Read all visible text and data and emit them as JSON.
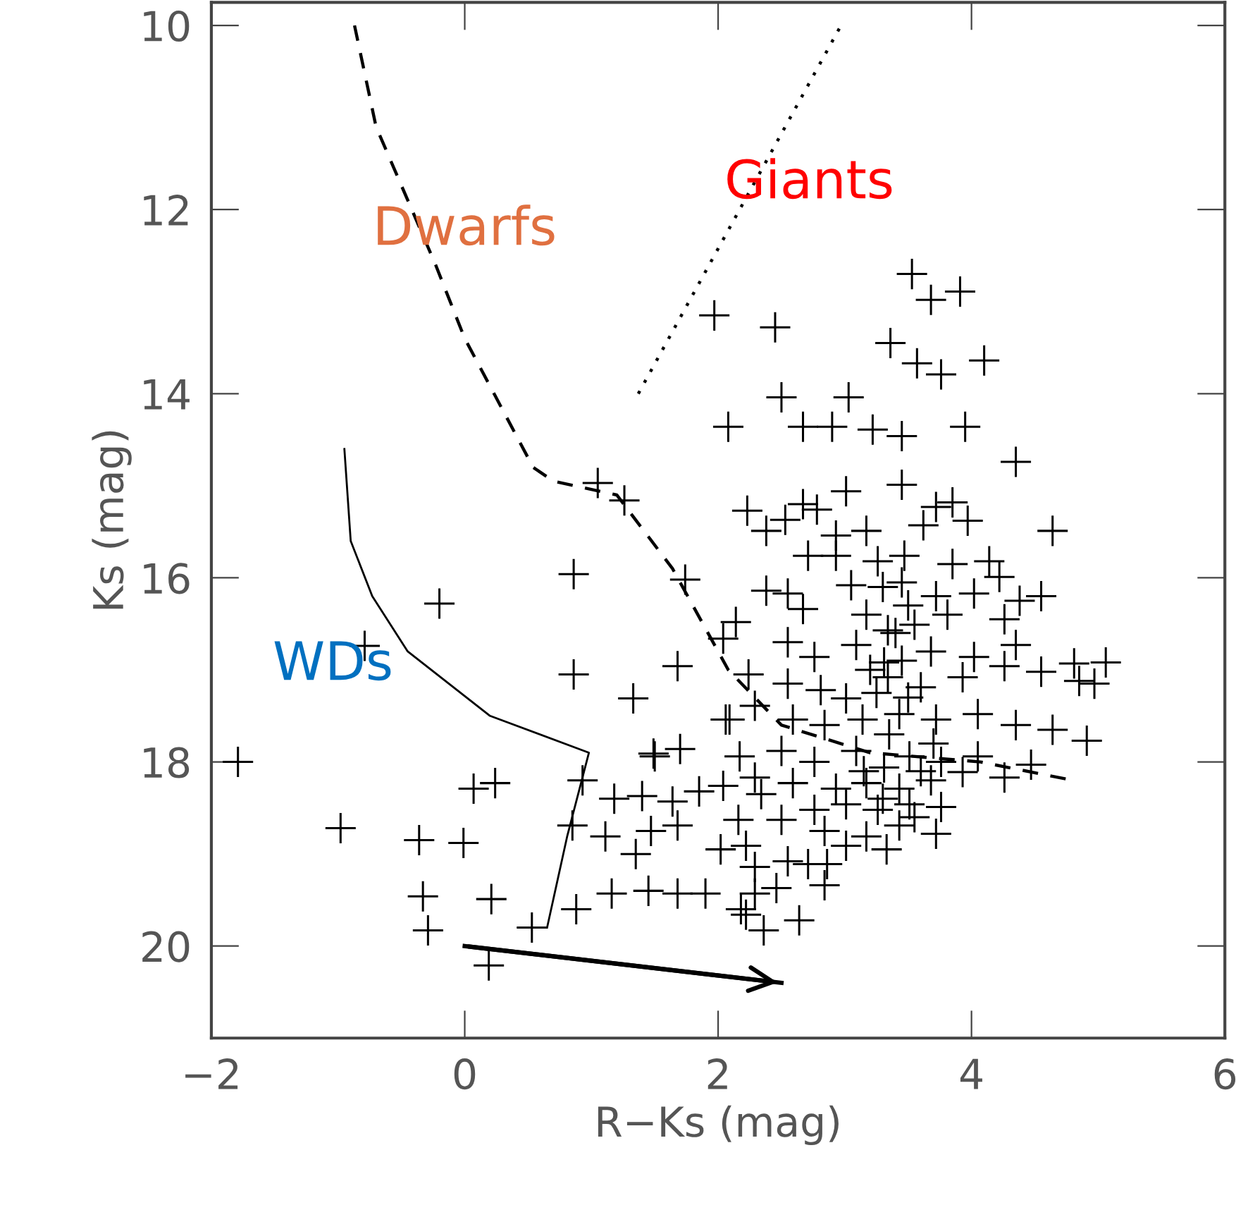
{
  "chart_data": {
    "type": "scatter",
    "xlabel": "R−Ks (mag)",
    "ylabel": "Ks (mag)",
    "xlim": [
      -2,
      6
    ],
    "ylim": [
      21,
      9.75
    ],
    "xticks": [
      {
        "value": -2,
        "label": "−2"
      },
      0,
      2,
      4,
      6
    ],
    "yticks": [
      10,
      12,
      14,
      16,
      18,
      20
    ],
    "grid": false,
    "legend": false,
    "annotations": [
      "Giants",
      "Dwarfs",
      "WDs"
    ],
    "series": [
      {
        "color": "#000000",
        "marker": "cross",
        "x": [
          1.97,
          2.08,
          1.05,
          1.26,
          2.23,
          0.86,
          -0.2,
          1.74,
          2.14,
          2.04,
          -0.79,
          0.86,
          1.68,
          1.33,
          2.06,
          1.49,
          1.7,
          -1.79,
          0.07,
          0.24,
          0.93,
          1.18,
          1.4,
          1.64,
          1.85,
          2.04,
          -0.98,
          -0.36,
          -0.01,
          0.85,
          1.11,
          1.47,
          1.68,
          2.16,
          1.35,
          2.02,
          -0.33,
          0.21,
          0.88,
          1.16,
          1.45,
          1.68,
          1.9,
          2.18,
          -0.29,
          0.53,
          0.19,
          3.53,
          3.68,
          3.91,
          2.45,
          3.36,
          3.57,
          3.76,
          4.1,
          2.5,
          3.03,
          2.67,
          2.9,
          3.22,
          3.45,
          3.95,
          4.35,
          3.45,
          3.01,
          2.67,
          2.78,
          3.85,
          3.97,
          2.53,
          2.38,
          3.62,
          3.72,
          4.64,
          2.93,
          3.17,
          2.71,
          2.93,
          3.26,
          3.47,
          3.85,
          4.14,
          4.22,
          2.38,
          2.55,
          3.05,
          3.45,
          3.72,
          4.02,
          4.38,
          4.55,
          2.67,
          3.17,
          3.34,
          3.55,
          3.81,
          4.26,
          2.55,
          2.76,
          3.09,
          3.31,
          3.68,
          4.02,
          4.35,
          2.24,
          2.55,
          2.81,
          3.01,
          3.34,
          3.6,
          3.93,
          4.26,
          4.55,
          4.81,
          5.06,
          4.85,
          4.97,
          2.09,
          2.29,
          2.59,
          2.84,
          3.14,
          3.43,
          3.72,
          4.05,
          4.35,
          4.64,
          4.91,
          1.5,
          2.17,
          2.5,
          2.76,
          3.09,
          3.31,
          3.51,
          3.76,
          4.05,
          4.26,
          4.47,
          2.29,
          2.59,
          2.93,
          3.17,
          3.43,
          3.68,
          3.93,
          2.34,
          2.5,
          2.76,
          3.01,
          3.26,
          3.51,
          3.76,
          2.84,
          3.17,
          3.43,
          3.72,
          3.01,
          3.33,
          2.22,
          2.29,
          2.55,
          2.71,
          2.86,
          2.46,
          2.84,
          2.29,
          2.22,
          2.36,
          2.64,
          3.35,
          3.5,
          3.25,
          3.45,
          3.6,
          3.3,
          3.55,
          3.2,
          3.4,
          3.7,
          3.15,
          3.5,
          3.3
        ],
        "values": [
          13.15,
          14.36,
          14.97,
          15.16,
          15.27,
          15.96,
          16.28,
          16.02,
          16.48,
          16.66,
          16.74,
          17.05,
          16.96,
          17.31,
          17.54,
          17.91,
          17.86,
          18.0,
          18.29,
          18.23,
          18.2,
          18.4,
          18.37,
          18.43,
          18.32,
          18.26,
          18.72,
          18.85,
          18.88,
          18.69,
          18.81,
          18.75,
          18.69,
          18.63,
          19.0,
          18.95,
          19.46,
          19.49,
          19.6,
          19.43,
          19.4,
          19.43,
          19.43,
          19.6,
          19.83,
          19.8,
          20.21,
          12.7,
          12.98,
          12.89,
          13.28,
          13.45,
          13.67,
          13.79,
          13.64,
          14.04,
          14.04,
          14.36,
          14.36,
          14.39,
          14.46,
          14.36,
          14.74,
          14.99,
          15.06,
          15.2,
          15.26,
          15.18,
          15.38,
          15.37,
          15.49,
          15.43,
          15.23,
          15.49,
          15.54,
          15.49,
          15.76,
          15.76,
          15.82,
          15.76,
          15.85,
          15.82,
          15.99,
          16.14,
          16.17,
          16.08,
          16.05,
          16.2,
          16.17,
          16.25,
          16.2,
          16.34,
          16.4,
          16.57,
          16.51,
          16.4,
          16.45,
          16.7,
          16.86,
          16.73,
          16.92,
          16.8,
          16.86,
          16.73,
          17.05,
          17.15,
          17.22,
          17.31,
          17.08,
          17.19,
          17.08,
          16.96,
          17.02,
          16.93,
          16.92,
          17.12,
          17.15,
          17.54,
          17.39,
          17.54,
          17.6,
          17.54,
          17.48,
          17.54,
          17.48,
          17.6,
          17.65,
          17.77,
          17.94,
          17.94,
          17.88,
          18.0,
          17.88,
          18.06,
          17.94,
          18.0,
          17.94,
          18.17,
          18.03,
          18.17,
          18.23,
          18.29,
          18.23,
          18.29,
          18.2,
          18.11,
          18.35,
          18.63,
          18.52,
          18.46,
          18.52,
          18.46,
          18.49,
          18.75,
          18.81,
          18.69,
          18.78,
          18.91,
          18.95,
          18.91,
          19.14,
          19.08,
          19.11,
          19.11,
          19.37,
          19.34,
          19.43,
          19.66,
          19.83,
          19.72,
          17.7,
          17.3,
          17.25,
          16.9,
          18.1,
          18.4,
          18.6,
          17.0,
          16.6,
          17.8,
          18.1,
          16.3,
          16.1
        ]
      },
      {
        "type": "line",
        "color": "#000000",
        "line_style": "dashed",
        "x": [
          -0.87,
          -0.7,
          -0.23,
          0.0,
          0.54,
          0.7,
          1.2,
          1.64,
          2.08,
          2.5,
          3.2,
          4.07,
          4.8
        ],
        "values": [
          10.0,
          11.1,
          12.6,
          13.4,
          14.8,
          14.95,
          15.1,
          15.9,
          17.0,
          17.6,
          17.9,
          18.0,
          18.2
        ]
      },
      {
        "type": "line",
        "color": "#000000",
        "line_style": "dotted",
        "x": [
          1.37,
          2.97
        ],
        "values": [
          14.0,
          10.0
        ]
      },
      {
        "type": "line",
        "color": "#000000",
        "line_style": "solid",
        "x": [
          -0.95,
          -0.9,
          -0.73,
          -0.45,
          0.2,
          0.98,
          0.81,
          0.65
        ],
        "values": [
          14.6,
          15.6,
          16.2,
          16.8,
          17.5,
          17.9,
          18.8,
          19.8
        ]
      },
      {
        "type": "line",
        "color": "#000000",
        "line_style": "solid",
        "x": [
          0.0,
          2.5
        ],
        "values": [
          20.0,
          20.4
        ]
      }
    ]
  }
}
